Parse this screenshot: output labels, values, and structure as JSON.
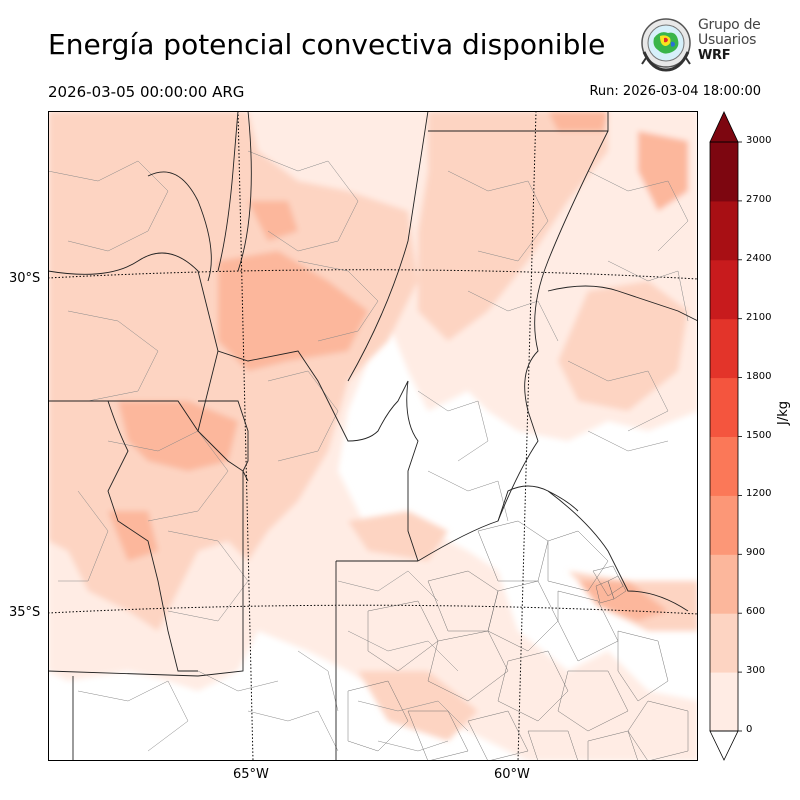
{
  "header": {
    "title": "Energía potencial convectiva disponible",
    "valid_time": "2026-03-05 00:00:00 ARG",
    "run_time": "Run: 2026-03-04 18:00:00"
  },
  "logo": {
    "line1": "Grupo de",
    "line2": "Usuarios",
    "line3": "WRF"
  },
  "map": {
    "lat_labels": [
      "30°S",
      "35°S"
    ],
    "lon_labels": [
      "65°W",
      "60°W"
    ]
  },
  "colorbar": {
    "unit": "J/kg",
    "ticks": [
      "0",
      "300",
      "600",
      "900",
      "1200",
      "1500",
      "1800",
      "2100",
      "2400",
      "2700",
      "3000"
    ],
    "colors": [
      "#ffece4",
      "#fdd4c2",
      "#fcb79c",
      "#fc9777",
      "#fb7858",
      "#f4553e",
      "#e3342a",
      "#c81b1d",
      "#a80f14",
      "#7d0610"
    ]
  }
}
